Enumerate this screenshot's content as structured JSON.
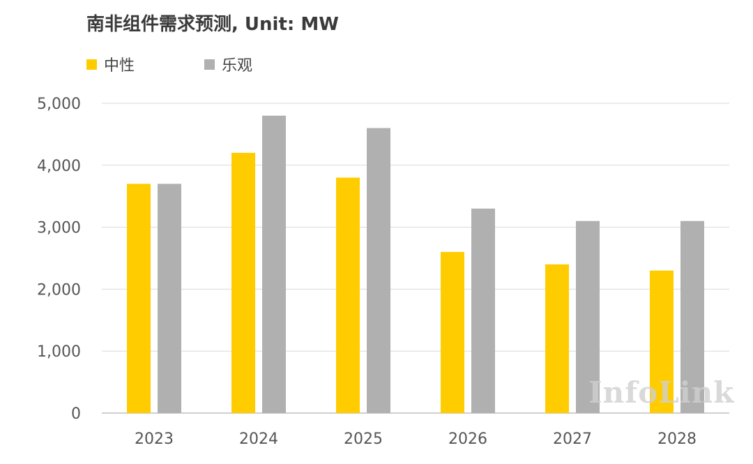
{
  "chart_data": {
    "type": "bar",
    "title": "南非组件需求预测, Unit: MW",
    "categories": [
      "2023",
      "2024",
      "2025",
      "2026",
      "2027",
      "2028"
    ],
    "series": [
      {
        "name": "中性",
        "color": "#FFCC00",
        "values": [
          3700,
          4200,
          3800,
          2600,
          2400,
          2300
        ]
      },
      {
        "name": "乐观",
        "color": "#B0B0B0",
        "values": [
          3700,
          4800,
          4600,
          3300,
          3100,
          3100
        ]
      }
    ],
    "ylim": [
      0,
      5000
    ],
    "yticks": [
      0,
      1000,
      2000,
      3000,
      4000,
      5000
    ],
    "ytick_labels": [
      "0",
      "1,000",
      "2,000",
      "3,000",
      "4,000",
      "5,000"
    ],
    "grid": true,
    "legend_position": "top-left",
    "xlabel": "",
    "ylabel": ""
  },
  "watermark": "InfoLink"
}
